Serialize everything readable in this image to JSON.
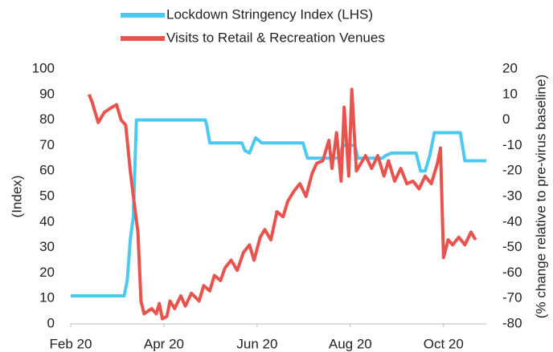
{
  "chart_data": {
    "type": "line",
    "ylabel": "(Index)",
    "y2label": "(% change relative to pre-virus baseline)",
    "xlim": [
      0,
      272
    ],
    "xticks": [
      {
        "value": 0,
        "label": "Feb 20"
      },
      {
        "value": 61,
        "label": "Apr 20"
      },
      {
        "value": 122,
        "label": "Jun 20"
      },
      {
        "value": 183,
        "label": "Aug 20"
      },
      {
        "value": 244,
        "label": "Oct 20"
      }
    ],
    "ylim": [
      0,
      100
    ],
    "yticks": [
      0,
      10,
      20,
      30,
      40,
      50,
      60,
      70,
      80,
      90,
      100
    ],
    "y2lim": [
      -80,
      20
    ],
    "y2ticks": [
      -80,
      -70,
      -60,
      -50,
      -40,
      -30,
      -20,
      -10,
      0,
      10,
      20
    ],
    "grid": false,
    "legend": "top",
    "series": [
      {
        "name": "Lockdown Stringency Index (LHS)",
        "color": "#4cc9f0",
        "x": [
          0,
          35,
          37,
          39,
          41,
          43,
          88,
          89,
          91,
          112,
          114,
          117,
          121,
          125,
          152,
          155,
          176,
          178,
          186,
          188,
          204,
          206,
          210,
          226,
          229,
          232,
          235,
          238,
          255,
          258,
          272
        ],
        "values": [
          11,
          11,
          17,
          33,
          42,
          80,
          80,
          78,
          71,
          71,
          68,
          67,
          73,
          71,
          71,
          65,
          65,
          70,
          70,
          65,
          65,
          66,
          67,
          67,
          60,
          60,
          66,
          75,
          75,
          64,
          64
        ]
      },
      {
        "name": "Visits to Retail & Recreation Venues",
        "color": "#e8534e",
        "axis": "y2",
        "x": [
          12,
          14,
          18,
          22,
          27,
          30,
          33,
          36,
          39,
          41,
          44,
          46,
          48,
          53,
          56,
          58,
          60,
          63,
          65,
          68,
          72,
          75,
          79,
          84,
          87,
          91,
          94,
          98,
          101,
          105,
          109,
          113,
          117,
          120,
          124,
          127,
          131,
          135,
          139,
          142,
          146,
          150,
          154,
          158,
          161,
          165,
          169,
          171,
          174,
          177,
          179,
          182,
          184,
          187,
          190,
          193,
          197,
          201,
          205,
          208,
          212,
          216,
          220,
          224,
          228,
          232,
          236,
          240,
          242,
          244,
          247,
          250,
          254,
          258,
          262,
          265
        ],
        "values": [
          10,
          7,
          -1,
          3,
          5,
          6,
          0,
          -2,
          -20,
          -30,
          -44,
          -71,
          -76,
          -74,
          -76,
          -72,
          -78,
          -77,
          -71,
          -74,
          -69,
          -73,
          -68,
          -71,
          -65,
          -67,
          -61,
          -63,
          -58,
          -55,
          -59,
          -52,
          -49,
          -55,
          -46,
          -43,
          -47,
          -36,
          -38,
          -32,
          -28,
          -25,
          -30,
          -21,
          -17,
          -16,
          -8,
          -19,
          -5,
          -24,
          5,
          -22,
          12,
          -20,
          -17,
          -14,
          -19,
          -14,
          -22,
          -16,
          -24,
          -19,
          -25,
          -24,
          -27,
          -22,
          -25,
          -17,
          -11,
          -54,
          -47,
          -49,
          -46,
          -49,
          -44,
          -47
        ]
      }
    ]
  }
}
